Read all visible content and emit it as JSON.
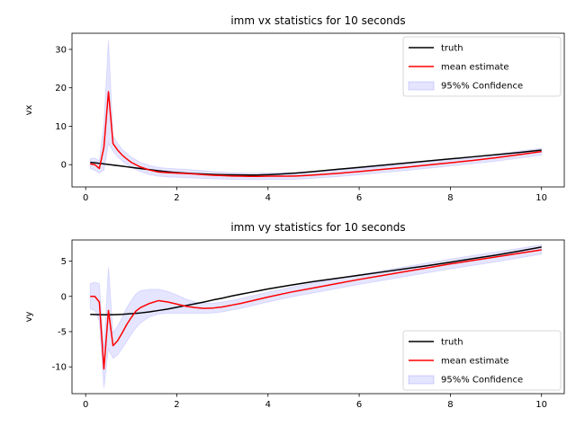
{
  "chart_data": [
    {
      "type": "line",
      "title": "imm vx statistics for 10 seconds",
      "xlabel": "",
      "ylabel": "vx",
      "xlim": [
        -0.3,
        10.5
      ],
      "ylim": [
        -5.8,
        34.2
      ],
      "xticks": [
        0,
        2,
        4,
        6,
        8,
        10
      ],
      "yticks": [
        0,
        10,
        20,
        30
      ],
      "grid": false,
      "legend_position": "top-right",
      "colors": {
        "truth": "#000000",
        "mean": "#ff0000",
        "band": "#0000ff"
      },
      "x": [
        0.1,
        0.2,
        0.3,
        0.4,
        0.5,
        0.6,
        0.7,
        0.8,
        0.9,
        1.0,
        1.2,
        1.4,
        1.6,
        1.8,
        2.0,
        2.2,
        2.4,
        2.6,
        2.8,
        3.0,
        3.2,
        3.4,
        3.6,
        3.8,
        4.0,
        4.2,
        4.4,
        4.6,
        4.8,
        5.0,
        5.5,
        6.0,
        6.5,
        7.0,
        7.5,
        8.0,
        8.5,
        9.0,
        9.5,
        10.0
      ],
      "series": [
        {
          "name": "truth",
          "role": "truth",
          "values": [
            0.6,
            0.5,
            0.35,
            0.2,
            0.05,
            -0.1,
            -0.25,
            -0.4,
            -0.55,
            -0.7,
            -1.0,
            -1.3,
            -1.6,
            -1.85,
            -2.05,
            -2.2,
            -2.35,
            -2.45,
            -2.55,
            -2.6,
            -2.65,
            -2.68,
            -2.7,
            -2.68,
            -2.6,
            -2.5,
            -2.35,
            -2.2,
            -2.0,
            -1.8,
            -1.25,
            -0.7,
            -0.15,
            0.4,
            0.95,
            1.5,
            2.05,
            2.6,
            3.15,
            3.8
          ]
        },
        {
          "name": "mean estimate",
          "role": "mean",
          "values": [
            0.2,
            0.0,
            -1.0,
            4.5,
            19.0,
            5.5,
            3.8,
            2.5,
            1.5,
            0.6,
            -0.6,
            -1.4,
            -1.9,
            -2.1,
            -2.2,
            -2.3,
            -2.45,
            -2.6,
            -2.75,
            -2.85,
            -2.95,
            -3.0,
            -3.05,
            -3.05,
            -3.0,
            -3.0,
            -3.0,
            -2.95,
            -2.85,
            -2.7,
            -2.3,
            -1.8,
            -1.25,
            -0.7,
            -0.1,
            0.5,
            1.1,
            1.8,
            2.6,
            3.4
          ]
        },
        {
          "name": "95%% Confidence",
          "role": "band",
          "lower": [
            -1.0,
            -1.5,
            -2.2,
            -1.5,
            5.5,
            3.5,
            2.0,
            1.0,
            0.0,
            -0.7,
            -1.8,
            -2.6,
            -3.0,
            -3.2,
            -3.3,
            -3.4,
            -3.5,
            -3.6,
            -3.7,
            -3.75,
            -3.8,
            -3.85,
            -3.9,
            -3.9,
            -3.9,
            -3.9,
            -3.85,
            -3.8,
            -3.7,
            -3.55,
            -3.15,
            -2.65,
            -2.1,
            -1.55,
            -0.95,
            -0.35,
            0.25,
            0.9,
            1.7,
            2.5
          ],
          "upper": [
            1.6,
            1.7,
            1.0,
            10.5,
            32.5,
            7.5,
            5.6,
            4.0,
            3.0,
            2.0,
            0.6,
            -0.2,
            -0.7,
            -0.95,
            -1.1,
            -1.2,
            -1.4,
            -1.6,
            -1.8,
            -1.95,
            -2.1,
            -2.15,
            -2.2,
            -2.2,
            -2.15,
            -2.1,
            -2.1,
            -2.05,
            -1.95,
            -1.8,
            -1.4,
            -0.9,
            -0.35,
            0.2,
            0.8,
            1.4,
            2.0,
            2.7,
            3.5,
            4.3
          ]
        }
      ]
    },
    {
      "type": "line",
      "title": "imm vy statistics for 10 seconds",
      "xlabel": "",
      "ylabel": "vy",
      "xlim": [
        -0.3,
        10.5
      ],
      "ylim": [
        -13.8,
        8.0
      ],
      "xticks": [
        0,
        2,
        4,
        6,
        8,
        10
      ],
      "yticks": [
        -10,
        -5,
        0,
        5
      ],
      "grid": false,
      "legend_position": "bottom-right",
      "colors": {
        "truth": "#000000",
        "mean": "#ff0000",
        "band": "#0000ff"
      },
      "x": [
        0.1,
        0.2,
        0.3,
        0.4,
        0.5,
        0.6,
        0.7,
        0.8,
        0.9,
        1.0,
        1.1,
        1.2,
        1.4,
        1.6,
        1.8,
        2.0,
        2.2,
        2.4,
        2.6,
        2.8,
        3.0,
        3.2,
        3.4,
        3.6,
        3.8,
        4.0,
        4.5,
        5.0,
        5.5,
        6.0,
        6.5,
        7.0,
        7.5,
        8.0,
        8.5,
        9.0,
        9.5,
        10.0
      ],
      "series": [
        {
          "name": "truth",
          "role": "truth",
          "values": [
            -2.55,
            -2.58,
            -2.6,
            -2.62,
            -2.62,
            -2.6,
            -2.58,
            -2.55,
            -2.5,
            -2.45,
            -2.4,
            -2.35,
            -2.2,
            -2.0,
            -1.8,
            -1.55,
            -1.3,
            -1.05,
            -0.8,
            -0.5,
            -0.25,
            0.05,
            0.3,
            0.55,
            0.8,
            1.05,
            1.6,
            2.1,
            2.55,
            3.0,
            3.45,
            3.9,
            4.35,
            4.85,
            5.35,
            5.85,
            6.4,
            7.0
          ]
        },
        {
          "name": "mean estimate",
          "role": "mean",
          "values": [
            0.0,
            0.0,
            -0.8,
            -10.3,
            -2.0,
            -7.0,
            -6.3,
            -5.2,
            -4.0,
            -3.0,
            -2.1,
            -1.6,
            -1.0,
            -0.6,
            -0.8,
            -1.1,
            -1.4,
            -1.6,
            -1.7,
            -1.65,
            -1.5,
            -1.25,
            -1.0,
            -0.7,
            -0.4,
            -0.1,
            0.6,
            1.2,
            1.8,
            2.4,
            2.95,
            3.5,
            4.05,
            4.6,
            5.1,
            5.6,
            6.1,
            6.6
          ]
        },
        {
          "name": "95%% Confidence",
          "role": "band",
          "lower": [
            -1.8,
            -2.0,
            -3.5,
            -13.0,
            -7.5,
            -8.8,
            -8.3,
            -7.4,
            -6.4,
            -5.4,
            -4.5,
            -3.8,
            -2.9,
            -2.5,
            -2.4,
            -2.4,
            -2.4,
            -2.4,
            -2.4,
            -2.35,
            -2.2,
            -1.95,
            -1.7,
            -1.4,
            -1.1,
            -0.8,
            -0.1,
            0.5,
            1.1,
            1.7,
            2.25,
            2.8,
            3.35,
            3.9,
            4.4,
            4.9,
            5.45,
            6.0
          ],
          "upper": [
            1.8,
            2.0,
            1.8,
            -7.5,
            4.2,
            -5.2,
            -4.2,
            -3.0,
            -1.6,
            -0.6,
            0.3,
            0.8,
            1.0,
            1.0,
            0.7,
            0.2,
            -0.4,
            -0.8,
            -1.0,
            -0.95,
            -0.8,
            -0.55,
            -0.3,
            0.0,
            0.3,
            0.6,
            1.3,
            1.9,
            2.5,
            3.1,
            3.65,
            4.2,
            4.75,
            5.3,
            5.8,
            6.3,
            6.8,
            7.3
          ]
        }
      ]
    }
  ]
}
